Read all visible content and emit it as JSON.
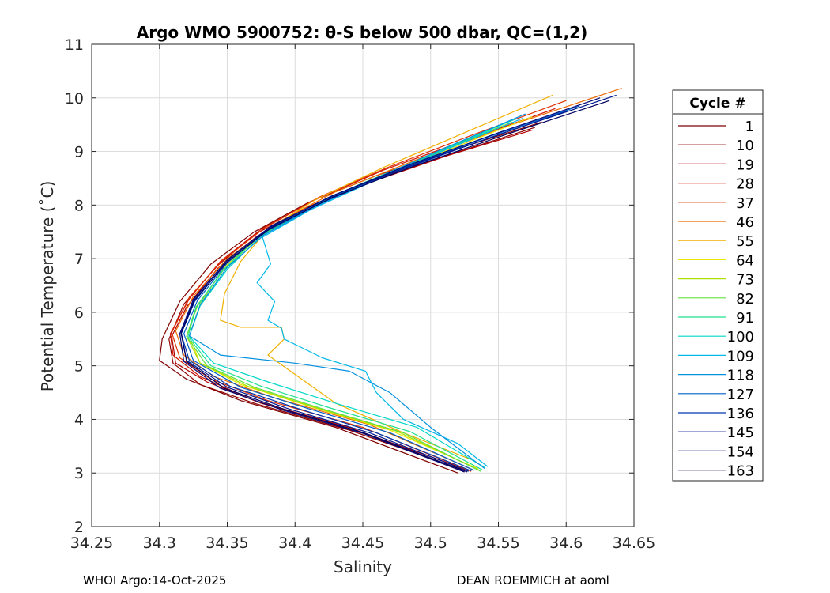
{
  "chart_data": {
    "type": "line",
    "title": "Argo WMO 5900752: θ-S below 500 dbar,  QC=(1,2)",
    "xlabel": "Salinity",
    "ylabel": "Potential Temperature (˚C)",
    "xlim": [
      34.25,
      34.65
    ],
    "ylim": [
      2,
      11
    ],
    "xticks": [
      "34.25",
      "34.3",
      "34.35",
      "34.4",
      "34.45",
      "34.5",
      "34.55",
      "34.6",
      "34.65"
    ],
    "yticks": [
      "2",
      "3",
      "4",
      "5",
      "6",
      "7",
      "8",
      "9",
      "10",
      "11"
    ],
    "grid": true,
    "legend_title": "Cycle #",
    "legend_position": "outside-right",
    "series": [
      {
        "name": "1",
        "color": "#800000",
        "points": [
          [
            34.582,
            9.55
          ],
          [
            34.52,
            9.05
          ],
          [
            34.46,
            8.55
          ],
          [
            34.41,
            8.05
          ],
          [
            34.37,
            7.5
          ],
          [
            34.338,
            6.9
          ],
          [
            34.315,
            6.2
          ],
          [
            34.302,
            5.5
          ],
          [
            34.3,
            5.1
          ],
          [
            34.32,
            4.75
          ],
          [
            34.36,
            4.35
          ],
          [
            34.43,
            3.85
          ],
          [
            34.52,
            3.0
          ]
        ]
      },
      {
        "name": "10",
        "color": "#900000",
        "points": [
          [
            34.577,
            9.45
          ],
          [
            34.515,
            8.95
          ],
          [
            34.456,
            8.45
          ],
          [
            34.408,
            7.95
          ],
          [
            34.37,
            7.45
          ],
          [
            34.342,
            6.85
          ],
          [
            34.318,
            6.15
          ],
          [
            34.307,
            5.5
          ],
          [
            34.31,
            5.05
          ],
          [
            34.33,
            4.65
          ],
          [
            34.37,
            4.3
          ],
          [
            34.44,
            3.8
          ],
          [
            34.525,
            3.05
          ]
        ]
      },
      {
        "name": "19",
        "color": "#b00000",
        "points": [
          [
            34.575,
            9.4
          ],
          [
            34.512,
            8.92
          ],
          [
            34.455,
            8.42
          ],
          [
            34.408,
            7.92
          ],
          [
            34.372,
            7.42
          ],
          [
            34.343,
            6.82
          ],
          [
            34.32,
            6.1
          ],
          [
            34.309,
            5.55
          ],
          [
            34.312,
            5.05
          ],
          [
            34.335,
            4.7
          ],
          [
            34.375,
            4.3
          ],
          [
            34.445,
            3.8
          ],
          [
            34.528,
            3.05
          ]
        ]
      },
      {
        "name": "28",
        "color": "#d01400",
        "points": [
          [
            34.592,
            9.8
          ],
          [
            34.525,
            9.2
          ],
          [
            34.465,
            8.65
          ],
          [
            34.415,
            8.1
          ],
          [
            34.375,
            7.55
          ],
          [
            34.345,
            6.95
          ],
          [
            34.322,
            6.25
          ],
          [
            34.308,
            5.6
          ],
          [
            34.31,
            5.2
          ],
          [
            34.33,
            4.8
          ],
          [
            34.37,
            4.35
          ],
          [
            34.44,
            3.85
          ],
          [
            34.525,
            3.02
          ]
        ]
      },
      {
        "name": "37",
        "color": "#e03000",
        "points": [
          [
            34.6,
            9.95
          ],
          [
            34.53,
            9.3
          ],
          [
            34.468,
            8.7
          ],
          [
            34.418,
            8.15
          ],
          [
            34.378,
            7.58
          ],
          [
            34.347,
            6.98
          ],
          [
            34.322,
            6.28
          ],
          [
            34.309,
            5.62
          ],
          [
            34.315,
            5.15
          ],
          [
            34.338,
            4.75
          ],
          [
            34.38,
            4.35
          ],
          [
            34.45,
            3.85
          ],
          [
            34.53,
            3.03
          ]
        ]
      },
      {
        "name": "46",
        "color": "#ee6a00",
        "points": [
          [
            34.641,
            10.18
          ],
          [
            34.56,
            9.5
          ],
          [
            34.49,
            8.85
          ],
          [
            34.43,
            8.25
          ],
          [
            34.385,
            7.65
          ],
          [
            34.35,
            7.0
          ],
          [
            34.325,
            6.3
          ],
          [
            34.312,
            5.65
          ],
          [
            34.318,
            5.2
          ],
          [
            34.34,
            4.8
          ],
          [
            34.385,
            4.4
          ],
          [
            34.455,
            3.9
          ],
          [
            34.532,
            3.05
          ]
        ]
      },
      {
        "name": "55",
        "color": "#f0b000",
        "points": [
          [
            34.59,
            10.05
          ],
          [
            34.525,
            9.35
          ],
          [
            34.465,
            8.7
          ],
          [
            34.415,
            8.1
          ],
          [
            34.38,
            7.55
          ],
          [
            34.36,
            6.95
          ],
          [
            34.348,
            6.35
          ],
          [
            34.345,
            5.85
          ],
          [
            34.36,
            5.72
          ],
          [
            34.39,
            5.72
          ],
          [
            34.392,
            5.5
          ],
          [
            34.38,
            5.2
          ],
          [
            34.43,
            4.3
          ],
          [
            34.48,
            3.75
          ],
          [
            34.53,
            3.25
          ]
        ]
      },
      {
        "name": "64",
        "color": "#e8e800",
        "points": [
          [
            34.575,
            9.65
          ],
          [
            34.515,
            9.05
          ],
          [
            34.46,
            8.5
          ],
          [
            34.413,
            7.98
          ],
          [
            34.375,
            7.45
          ],
          [
            34.348,
            6.85
          ],
          [
            34.33,
            6.15
          ],
          [
            34.322,
            5.55
          ],
          [
            34.33,
            5.05
          ],
          [
            34.36,
            4.65
          ],
          [
            34.41,
            4.25
          ],
          [
            34.47,
            3.8
          ],
          [
            34.535,
            3.08
          ]
        ]
      },
      {
        "name": "73",
        "color": "#aee000",
        "points": [
          [
            34.56,
            9.55
          ],
          [
            34.505,
            8.98
          ],
          [
            34.455,
            8.45
          ],
          [
            34.41,
            7.95
          ],
          [
            34.374,
            7.42
          ],
          [
            34.348,
            6.82
          ],
          [
            34.328,
            6.12
          ],
          [
            34.32,
            5.55
          ],
          [
            34.33,
            5.05
          ],
          [
            34.365,
            4.62
          ],
          [
            34.415,
            4.22
          ],
          [
            34.475,
            3.78
          ],
          [
            34.536,
            3.05
          ]
        ]
      },
      {
        "name": "82",
        "color": "#60e040",
        "points": [
          [
            34.55,
            9.45
          ],
          [
            34.5,
            8.92
          ],
          [
            34.45,
            8.4
          ],
          [
            34.408,
            7.9
          ],
          [
            34.372,
            7.38
          ],
          [
            34.347,
            6.78
          ],
          [
            34.327,
            6.1
          ],
          [
            34.32,
            5.55
          ],
          [
            34.335,
            5.0
          ],
          [
            34.37,
            4.6
          ],
          [
            34.42,
            4.2
          ],
          [
            34.48,
            3.75
          ],
          [
            34.537,
            3.03
          ]
        ]
      },
      {
        "name": "91",
        "color": "#20e090",
        "points": [
          [
            34.545,
            9.4
          ],
          [
            34.495,
            8.88
          ],
          [
            34.447,
            8.38
          ],
          [
            34.405,
            7.88
          ],
          [
            34.37,
            7.36
          ],
          [
            34.346,
            6.76
          ],
          [
            34.327,
            6.08
          ],
          [
            34.321,
            5.55
          ],
          [
            34.338,
            5.0
          ],
          [
            34.375,
            4.62
          ],
          [
            34.425,
            4.22
          ],
          [
            34.485,
            3.77
          ],
          [
            34.538,
            3.06
          ]
        ]
      },
      {
        "name": "100",
        "color": "#00d8c8",
        "points": [
          [
            34.562,
            9.6
          ],
          [
            34.505,
            9.0
          ],
          [
            34.455,
            8.45
          ],
          [
            34.41,
            7.92
          ],
          [
            34.374,
            7.4
          ],
          [
            34.35,
            6.8
          ],
          [
            34.33,
            6.12
          ],
          [
            34.322,
            5.55
          ],
          [
            34.34,
            5.05
          ],
          [
            34.38,
            4.7
          ],
          [
            34.43,
            4.3
          ],
          [
            34.49,
            3.85
          ],
          [
            34.54,
            3.1
          ]
        ]
      },
      {
        "name": "109",
        "color": "#00b8e8",
        "points": [
          [
            34.568,
            9.62
          ],
          [
            34.51,
            9.02
          ],
          [
            34.458,
            8.45
          ],
          [
            34.412,
            7.92
          ],
          [
            34.376,
            7.4
          ],
          [
            34.382,
            6.9
          ],
          [
            34.372,
            6.55
          ],
          [
            34.385,
            6.2
          ],
          [
            34.38,
            5.85
          ],
          [
            34.39,
            5.7
          ],
          [
            34.392,
            5.5
          ],
          [
            34.42,
            5.15
          ],
          [
            34.452,
            4.9
          ],
          [
            34.46,
            4.5
          ],
          [
            34.48,
            4.0
          ],
          [
            34.52,
            3.55
          ],
          [
            34.542,
            3.12
          ]
        ]
      },
      {
        "name": "118",
        "color": "#0090e0",
        "points": [
          [
            34.57,
            9.7
          ],
          [
            34.512,
            9.08
          ],
          [
            34.46,
            8.5
          ],
          [
            34.414,
            7.96
          ],
          [
            34.377,
            7.44
          ],
          [
            34.35,
            6.84
          ],
          [
            34.33,
            6.14
          ],
          [
            34.322,
            5.56
          ],
          [
            34.345,
            5.2
          ],
          [
            34.4,
            5.05
          ],
          [
            34.44,
            4.9
          ],
          [
            34.47,
            4.5
          ],
          [
            34.5,
            3.85
          ],
          [
            34.54,
            3.08
          ]
        ]
      },
      {
        "name": "127",
        "color": "#0060c8",
        "points": [
          [
            34.61,
            9.85
          ],
          [
            34.54,
            9.25
          ],
          [
            34.475,
            8.65
          ],
          [
            34.422,
            8.1
          ],
          [
            34.38,
            7.55
          ],
          [
            34.35,
            6.92
          ],
          [
            34.328,
            6.22
          ],
          [
            34.318,
            5.6
          ],
          [
            34.325,
            5.1
          ],
          [
            34.36,
            4.6
          ],
          [
            34.41,
            4.2
          ],
          [
            34.47,
            3.75
          ],
          [
            34.532,
            3.05
          ]
        ]
      },
      {
        "name": "136",
        "color": "#0038b0",
        "points": [
          [
            34.6,
            9.75
          ],
          [
            34.535,
            9.18
          ],
          [
            34.472,
            8.6
          ],
          [
            34.42,
            8.05
          ],
          [
            34.378,
            7.5
          ],
          [
            34.348,
            6.9
          ],
          [
            34.326,
            6.2
          ],
          [
            34.316,
            5.6
          ],
          [
            34.322,
            5.1
          ],
          [
            34.352,
            4.62
          ],
          [
            34.4,
            4.22
          ],
          [
            34.46,
            3.75
          ],
          [
            34.53,
            3.04
          ]
        ]
      },
      {
        "name": "145",
        "color": "#001890",
        "points": [
          [
            34.637,
            10.05
          ],
          [
            34.56,
            9.4
          ],
          [
            34.49,
            8.78
          ],
          [
            34.43,
            8.2
          ],
          [
            34.383,
            7.62
          ],
          [
            34.35,
            6.98
          ],
          [
            34.326,
            6.26
          ],
          [
            34.316,
            5.62
          ],
          [
            34.32,
            5.1
          ],
          [
            34.35,
            4.6
          ],
          [
            34.395,
            4.2
          ],
          [
            34.455,
            3.75
          ],
          [
            34.528,
            3.03
          ]
        ]
      },
      {
        "name": "154",
        "color": "#000878",
        "points": [
          [
            34.625,
            10.0
          ],
          [
            34.55,
            9.35
          ],
          [
            34.483,
            8.74
          ],
          [
            34.426,
            8.16
          ],
          [
            34.381,
            7.58
          ],
          [
            34.349,
            6.95
          ],
          [
            34.325,
            6.24
          ],
          [
            34.315,
            5.6
          ],
          [
            34.318,
            5.08
          ],
          [
            34.345,
            4.58
          ],
          [
            34.39,
            4.18
          ],
          [
            34.45,
            3.74
          ],
          [
            34.525,
            3.02
          ]
        ]
      },
      {
        "name": "163",
        "color": "#000060",
        "points": [
          [
            34.632,
            9.95
          ],
          [
            34.556,
            9.32
          ],
          [
            34.487,
            8.72
          ],
          [
            34.428,
            8.15
          ],
          [
            34.382,
            7.57
          ],
          [
            34.35,
            6.94
          ],
          [
            34.326,
            6.23
          ],
          [
            34.316,
            5.6
          ],
          [
            34.32,
            5.08
          ],
          [
            34.348,
            4.58
          ],
          [
            34.393,
            4.18
          ],
          [
            34.452,
            3.74
          ],
          [
            34.527,
            3.02
          ]
        ]
      }
    ]
  },
  "footer": {
    "left": "WHOI Argo:14-Oct-2025",
    "right": "DEAN ROEMMICH at aoml"
  }
}
